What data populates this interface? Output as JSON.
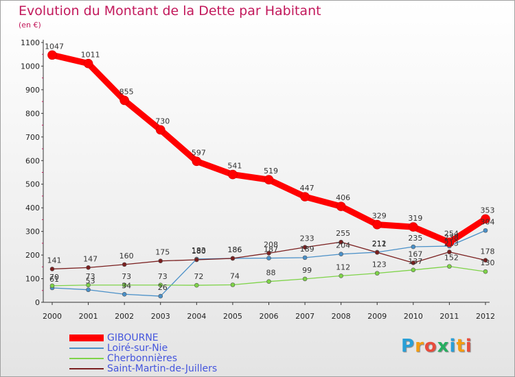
{
  "header": {
    "title": "Evolution du Montant de la Dette par Habitant",
    "subtitle": "(en €)"
  },
  "logo": {
    "letters": [
      "P",
      "r",
      "o",
      "x",
      "i",
      "t",
      "i"
    ],
    "colors": [
      "#2a9fd6",
      "#f39c12",
      "#e74c3c",
      "#27ae60",
      "#2a9fd6",
      "#f39c12",
      "#e74c3c"
    ]
  },
  "chart_data": {
    "type": "line",
    "title": "Evolution du Montant de la Dette par Habitant",
    "subtitle": "(en €)",
    "xlabel": "",
    "ylabel": "",
    "ylim": [
      0,
      1100
    ],
    "yticks": [
      0,
      100,
      200,
      300,
      400,
      500,
      600,
      700,
      800,
      900,
      1000,
      1100
    ],
    "x": [
      "2000",
      "2001",
      "2002",
      "2003",
      "2004",
      "2005",
      "2006",
      "2007",
      "2008",
      "2009",
      "2010",
      "2011",
      "2012"
    ],
    "grid": false,
    "legend_position": "bottom-left",
    "series": [
      {
        "name": "GIBOURNE",
        "color": "#ff0000",
        "values": [
          1047,
          1011,
          855,
          730,
          597,
          541,
          519,
          447,
          406,
          329,
          319,
          254,
          353
        ]
      },
      {
        "name": "Loiré-sur-Nie",
        "color": "#4a90c8",
        "values": [
          61,
          53,
          34,
          26,
          183,
          186,
          187,
          189,
          204,
          212,
          235,
          238,
          304
        ]
      },
      {
        "name": "Cherbonnières",
        "color": "#7ed348",
        "values": [
          70,
          73,
          73,
          73,
          72,
          74,
          88,
          99,
          112,
          123,
          137,
          152,
          130
        ]
      },
      {
        "name": "Saint-Martin-de-Juillers",
        "color": "#7a1f1f",
        "values": [
          141,
          147,
          160,
          175,
          180,
          186,
          208,
          233,
          255,
          211,
          167,
          213,
          178
        ]
      }
    ]
  }
}
